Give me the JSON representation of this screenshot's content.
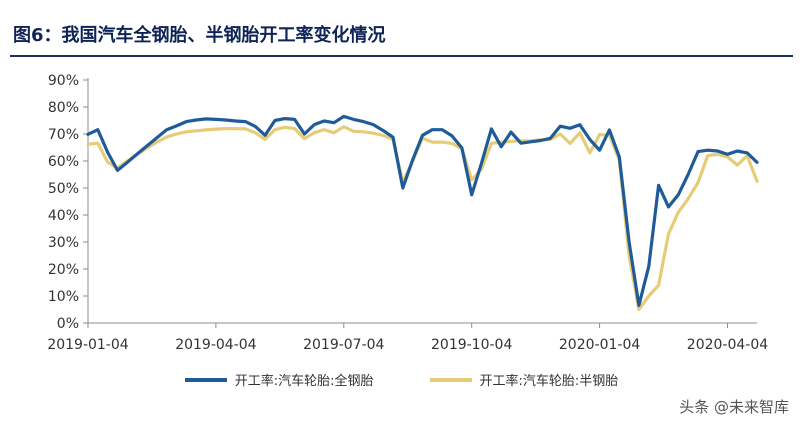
{
  "figure": {
    "title": "图6：我国汽车全钢胎、半钢胎开工率变化情况",
    "watermark": "头条 @未来智库"
  },
  "chart_data": {
    "type": "line",
    "y_tick_labels": [
      "0%",
      "10%",
      "20%",
      "30%",
      "40%",
      "50%",
      "60%",
      "70%",
      "80%",
      "90%"
    ],
    "ylim": [
      0,
      90
    ],
    "x_tick_labels": [
      "2019-01-04",
      "2019-04-04",
      "2019-07-04",
      "2019-10-04",
      "2020-01-04",
      "2020-04-04"
    ],
    "x_tick_weeks": [
      0,
      13,
      26,
      39,
      52,
      65
    ],
    "grid": false,
    "legend_position": "bottom",
    "series": [
      {
        "name": "开工率:汽车轮胎:全钢胎",
        "color": "#1f5b99",
        "values": [
          69.9,
          71.6,
          63.2,
          56.5,
          59.5,
          62.6,
          65.6,
          68.6,
          71.6,
          73.0,
          74.6,
          75.2,
          75.6,
          75.4,
          75.2,
          74.8,
          74.6,
          72.8,
          69.5,
          75.0,
          75.7,
          75.4,
          70.0,
          73.5,
          74.8,
          74.2,
          76.5,
          75.4,
          74.6,
          73.5,
          71.3,
          68.8,
          50.0,
          60.5,
          69.5,
          71.6,
          71.6,
          69.3,
          64.8,
          47.5,
          59.2,
          71.9,
          65.3,
          70.7,
          66.6,
          67.1,
          67.6,
          68.4,
          72.9,
          72.1,
          73.4,
          68.0,
          64.0,
          71.5,
          61.5,
          30.0,
          6.5,
          21.0,
          51.0,
          43.0,
          47.5,
          55.0,
          63.5,
          64.0,
          63.7,
          62.5,
          63.7,
          63.0,
          59.5
        ]
      },
      {
        "name": "开工率:汽车轮胎:半钢胎",
        "color": "#e6cc77",
        "values": [
          66.2,
          66.6,
          59.5,
          57.5,
          60.0,
          62.5,
          64.8,
          67.0,
          68.9,
          70.0,
          70.8,
          71.2,
          71.5,
          71.8,
          72.0,
          72.0,
          71.9,
          70.5,
          68.0,
          71.6,
          72.5,
          72.0,
          68.3,
          70.5,
          71.6,
          70.5,
          72.7,
          71.0,
          70.8,
          70.3,
          69.5,
          68.0,
          52.0,
          60.0,
          68.5,
          67.0,
          67.0,
          66.5,
          64.5,
          53.0,
          57.0,
          66.5,
          67.0,
          67.3,
          67.5,
          67.5,
          67.8,
          68.0,
          70.0,
          66.5,
          70.5,
          63.0,
          69.8,
          69.5,
          60.5,
          25.0,
          5.0,
          10.0,
          14.0,
          33.0,
          41.0,
          46.0,
          52.0,
          62.0,
          62.5,
          61.5,
          58.5,
          62.0,
          52.5
        ]
      }
    ]
  }
}
